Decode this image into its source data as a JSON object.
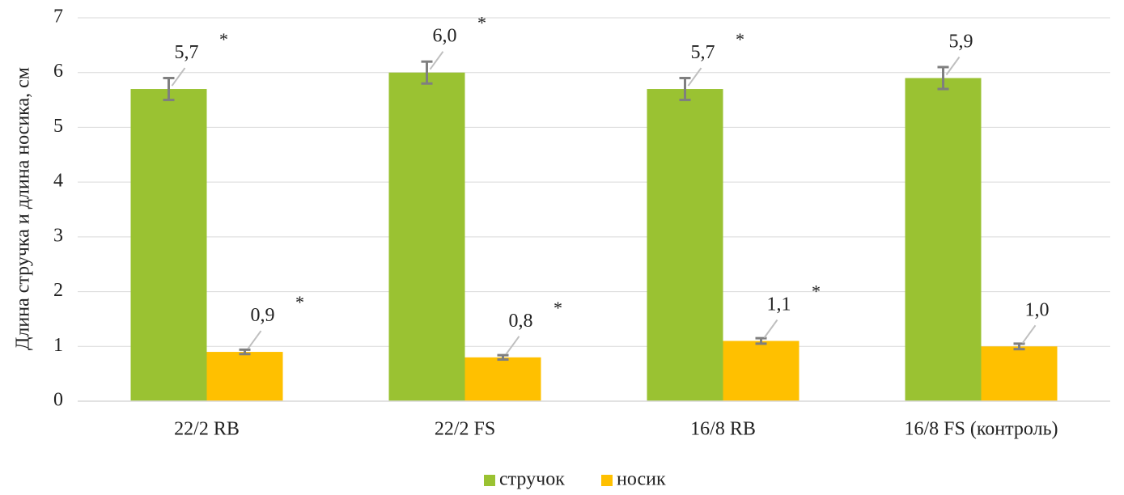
{
  "chart_data": {
    "type": "bar",
    "ylabel": "Длина стручка и длина носика, см",
    "ylim": [
      0,
      7
    ],
    "yticks": [
      "0",
      "1",
      "2",
      "3",
      "4",
      "5",
      "6",
      "7"
    ],
    "grid": true,
    "legend_position": "bottom",
    "categories": [
      "22/2 RB",
      "22/2 FS",
      "16/8 RB",
      "16/8 FS (контроль)"
    ],
    "series": [
      {
        "name": "стручок",
        "color": "#9ac232",
        "values": [
          5.7,
          6.0,
          5.7,
          5.9
        ],
        "labels": [
          "5,7",
          "6,0",
          "5,7",
          "5,9"
        ],
        "error": [
          0.2,
          0.2,
          0.2,
          0.2
        ],
        "significance": [
          "*",
          "*",
          "*",
          ""
        ]
      },
      {
        "name": "носик",
        "color": "#ffc000",
        "values": [
          0.9,
          0.8,
          1.1,
          1.0
        ],
        "labels": [
          "0,9",
          "0,8",
          "1,1",
          "1,0"
        ],
        "error": [
          0.04,
          0.04,
          0.05,
          0.05
        ],
        "significance": [
          "*",
          "*",
          "*",
          ""
        ]
      }
    ],
    "error_bar_color": "#7f7f7f"
  }
}
